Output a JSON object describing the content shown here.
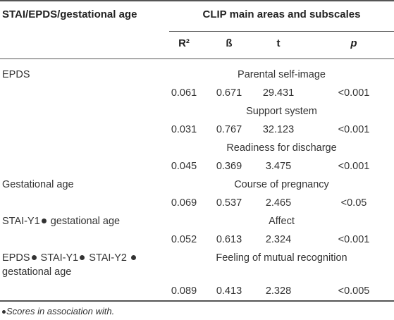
{
  "table": {
    "header": {
      "col1": "STAI/EPDS/gestational age",
      "group": "CLIP main areas and subscales",
      "cols": [
        "R²",
        "ß",
        "t",
        "p"
      ]
    },
    "rows": [
      {
        "predictor": "EPDS",
        "subscale": "Parental self-image",
        "r2": "0.061",
        "beta": "0.671",
        "t": "29.431",
        "p": "<0.001"
      },
      {
        "predictor": "",
        "subscale": "Support system",
        "r2": "0.031",
        "beta": "0.767",
        "t": "32.123",
        "p": "<0.001"
      },
      {
        "predictor": "",
        "subscale": "Readiness for discharge",
        "r2": "0.045",
        "beta": "0.369",
        "t": "3.475",
        "p": "<0.001"
      },
      {
        "predictor": "Gestational age",
        "subscale": "Course of pregnancy",
        "r2": "0.069",
        "beta": "0.537",
        "t": "2.465",
        "p": "<0.05"
      },
      {
        "predictor_parts": [
          "STAI-Y1",
          "gestational age"
        ],
        "subscale": "Affect",
        "r2": "0.052",
        "beta": "0.613",
        "t": "2.324",
        "p": "<0.001"
      },
      {
        "predictor_parts": [
          "EPDS",
          "STAI-Y1",
          "STAI-Y2",
          "gestational age"
        ],
        "subscale": "Feeling of mutual recognition",
        "r2": "0.089",
        "beta": "0.413",
        "t": "2.328",
        "p": "<0.005"
      }
    ],
    "footnote": "Scores in association with."
  }
}
